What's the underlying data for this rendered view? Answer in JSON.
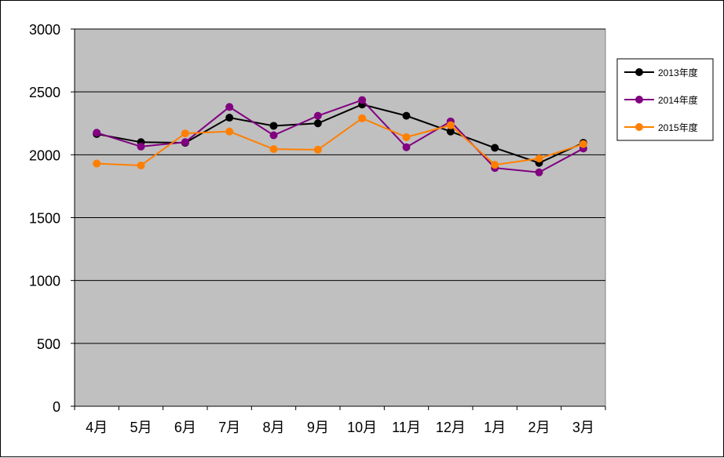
{
  "chart_data": {
    "type": "line",
    "categories": [
      "4月",
      "5月",
      "6月",
      "7月",
      "8月",
      "9月",
      "10月",
      "11月",
      "12月",
      "1月",
      "2月",
      "3月"
    ],
    "series": [
      {
        "name": "2013年度",
        "color": "#000000",
        "values": [
          2165,
          2100,
          2095,
          2295,
          2230,
          2250,
          2400,
          2310,
          2185,
          2055,
          1935,
          2095
        ]
      },
      {
        "name": "2014年度",
        "color": "#800080",
        "values": [
          2175,
          2065,
          2100,
          2380,
          2155,
          2310,
          2435,
          2060,
          2265,
          1895,
          1860,
          2050
        ]
      },
      {
        "name": "2015年度",
        "color": "#ff7f00",
        "values": [
          1930,
          1915,
          2170,
          2185,
          2045,
          2040,
          2290,
          2140,
          2235,
          1920,
          1970,
          2085
        ]
      }
    ],
    "ylim": [
      0,
      3000
    ],
    "yticks": [
      0,
      500,
      1000,
      1500,
      2000,
      2500,
      3000
    ],
    "grid": true,
    "legend_position": "right",
    "plot_background": "#c0c0c0"
  }
}
